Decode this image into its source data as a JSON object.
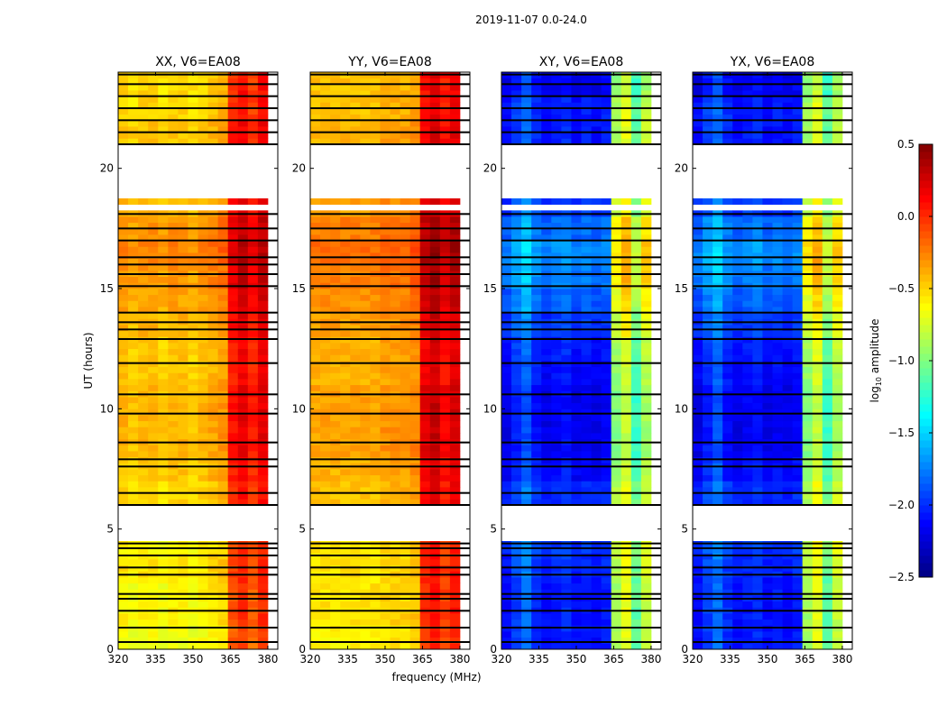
{
  "chart_data": {
    "type": "heatmap",
    "title": "2019-11-07 0.0-24.0",
    "xlabel": "frequency (MHz)",
    "ylabel": "UT (hours)",
    "xlim": [
      320,
      384
    ],
    "ylim": [
      0,
      24
    ],
    "xticks": [
      "320",
      "335",
      "350",
      "365",
      "380"
    ],
    "xtick_values": [
      320,
      335,
      350,
      365,
      380
    ],
    "yticks": [
      "0",
      "5",
      "10",
      "15",
      "20"
    ],
    "ytick_values": [
      0,
      5,
      10,
      15,
      20
    ],
    "colorbar": {
      "label": "log10 amplitude",
      "label_main": "log",
      "label_sub": "10",
      "label_rest": " amplitude",
      "range": [
        -2.5,
        0.5
      ],
      "colormap": "jet",
      "ticks": [
        "0.5",
        "0.0",
        "−0.5",
        "−1.0",
        "−1.5",
        "−2.0",
        "−2.5"
      ],
      "tick_values": [
        0.5,
        0.0,
        -0.5,
        -1.0,
        -1.5,
        -2.0,
        -2.5
      ]
    },
    "freq_bins_mhz": [
      320,
      324,
      328,
      332,
      336,
      340,
      344,
      348,
      352,
      356,
      360,
      364,
      368,
      372,
      376,
      380
    ],
    "time_bins_hours": [
      0,
      1,
      2,
      3,
      4,
      5,
      6,
      7,
      8,
      9,
      10,
      11,
      12,
      13,
      14,
      15,
      16,
      17,
      18,
      19,
      20,
      21,
      22,
      23
    ],
    "flagged_gaps_hours": [
      [
        4.5,
        5.9
      ],
      [
        18.2,
        18.5
      ],
      [
        18.7,
        21.0
      ]
    ],
    "flagged_rows_hours": [
      0.3,
      0.9,
      1.6,
      2.1,
      2.3,
      3.1,
      3.4,
      3.9,
      4.2,
      4.4,
      6.0,
      6.5,
      7.6,
      7.9,
      8.6,
      9.8,
      10.6,
      11.9,
      12.9,
      13.3,
      13.6,
      14.0,
      15.1,
      15.6,
      16.0,
      16.3,
      17.0,
      17.5,
      18.1,
      21.0,
      21.5,
      22.0,
      22.5,
      23.0,
      23.5,
      23.9
    ],
    "panels": [
      {
        "title": "XX, V6=EA08",
        "time_profile": [
          -0.65,
          -0.6,
          -0.6,
          -0.55,
          -0.6,
          -0.6,
          -0.5,
          -0.45,
          -0.4,
          -0.4,
          -0.4,
          -0.45,
          -0.45,
          -0.4,
          -0.35,
          -0.3,
          -0.25,
          -0.3,
          -0.4,
          -0.4,
          -0.4,
          -0.45,
          -0.5,
          -0.5
        ],
        "freq_profile": [
          0,
          -0.05,
          0,
          0,
          -0.05,
          0,
          0,
          -0.05,
          0,
          0.05,
          0.1,
          0.5,
          0.6,
          0.45,
          0.6,
          null
        ]
      },
      {
        "title": "YY, V6=EA08",
        "time_profile": [
          -0.6,
          -0.55,
          -0.55,
          -0.55,
          -0.55,
          -0.55,
          -0.45,
          -0.4,
          -0.35,
          -0.35,
          -0.35,
          -0.4,
          -0.4,
          -0.35,
          -0.3,
          -0.25,
          -0.2,
          -0.25,
          -0.35,
          -0.35,
          -0.35,
          -0.4,
          -0.45,
          -0.45
        ],
        "freq_profile": [
          0,
          0,
          0,
          0,
          0,
          0,
          0,
          0.05,
          0.05,
          0.05,
          0.1,
          0.55,
          0.65,
          0.5,
          0.6,
          null
        ]
      },
      {
        "title": "XY, V6=EA08",
        "time_profile": [
          -2.1,
          -2.1,
          -2.1,
          -2.05,
          -2.0,
          -2.0,
          -2.05,
          -2.15,
          -2.2,
          -2.2,
          -2.2,
          -2.15,
          -2.1,
          -2.0,
          -1.9,
          -1.8,
          -1.75,
          -1.85,
          -2.0,
          -2.0,
          -2.0,
          -2.1,
          -2.1,
          -2.2
        ],
        "freq_profile": [
          0,
          0.15,
          0.3,
          0.1,
          0,
          0.05,
          0.1,
          0,
          0.05,
          0,
          0.05,
          1.2,
          1.4,
          1.0,
          1.3,
          null
        ]
      },
      {
        "title": "YX, V6=EA08",
        "time_profile": [
          -2.1,
          -2.1,
          -2.1,
          -2.05,
          -2.0,
          -2.0,
          -2.05,
          -2.15,
          -2.2,
          -2.2,
          -2.2,
          -2.15,
          -2.1,
          -2.0,
          -1.9,
          -1.8,
          -1.75,
          -1.85,
          -2.0,
          -2.0,
          -2.0,
          -2.1,
          -2.1,
          -2.2
        ],
        "freq_profile": [
          0,
          0.15,
          0.3,
          0.1,
          0,
          0.05,
          0.1,
          0,
          0.05,
          0,
          0.05,
          1.2,
          1.4,
          1.0,
          1.3,
          null
        ]
      }
    ]
  }
}
